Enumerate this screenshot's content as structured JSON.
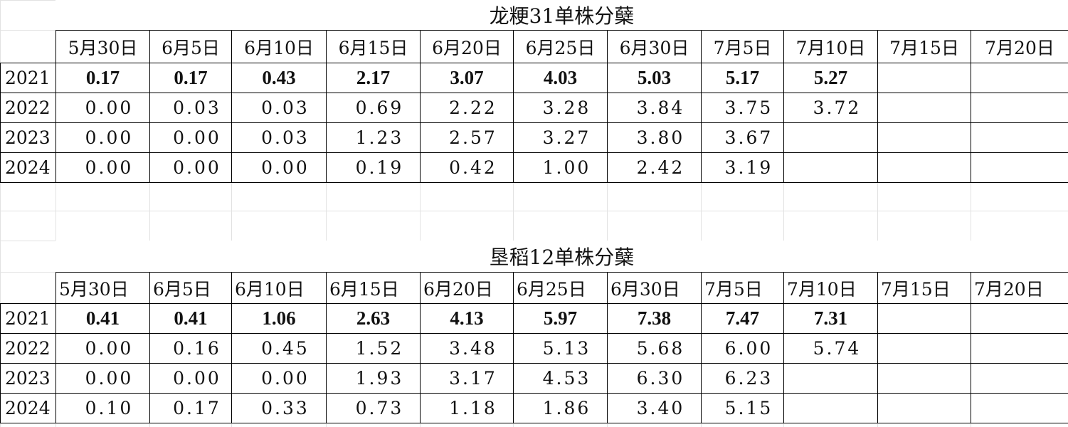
{
  "tables": [
    {
      "title": "龙粳31单株分蘖",
      "headers": [
        "5月30日",
        "6月5日",
        "6月10日",
        "6月15日",
        "6月20日",
        "6月25日",
        "6月30日",
        "7月5日",
        "7月10日",
        "7月15日",
        "7月20日"
      ],
      "rows": [
        {
          "year": "2021",
          "values": [
            "0.17",
            "0.17",
            "0.43",
            "2.17",
            "3.07",
            "4.03",
            "5.03",
            "5.17",
            "5.27"
          ]
        },
        {
          "year": "2022",
          "values": [
            "0.00",
            "0.03",
            "0.03",
            "0.69",
            "2.22",
            "3.28",
            "3.84",
            "3.75",
            "3.72"
          ]
        },
        {
          "year": "2023",
          "values": [
            "0.00",
            "0.00",
            "0.03",
            "1.23",
            "2.57",
            "3.27",
            "3.80",
            "3.67"
          ]
        },
        {
          "year": "2024",
          "values": [
            "0.00",
            "0.00",
            "0.00",
            "0.19",
            "0.42",
            "1.00",
            "2.42",
            "3.19"
          ]
        }
      ]
    },
    {
      "title": "垦稻12单株分蘖",
      "headers": [
        "5月30日",
        "6月5日",
        "6月10日",
        "6月15日",
        "6月20日",
        "6月25日",
        "6月30日",
        "7月5日",
        "7月10日",
        "7月15日",
        "7月20日"
      ],
      "rows": [
        {
          "year": "2021",
          "values": [
            "0.41",
            "0.41",
            "1.06",
            "2.63",
            "4.13",
            "5.97",
            "7.38",
            "7.47",
            "7.31"
          ]
        },
        {
          "year": "2022",
          "values": [
            "0.00",
            "0.16",
            "0.45",
            "1.52",
            "3.48",
            "5.13",
            "5.68",
            "6.00",
            "5.74"
          ]
        },
        {
          "year": "2023",
          "values": [
            "0.00",
            "0.00",
            "0.00",
            "1.93",
            "3.17",
            "4.53",
            "6.30",
            "6.23"
          ]
        },
        {
          "year": "2024",
          "values": [
            "0.10",
            "0.17",
            "0.33",
            "0.73",
            "1.18",
            "1.86",
            "3.40",
            "5.15"
          ]
        }
      ]
    }
  ]
}
